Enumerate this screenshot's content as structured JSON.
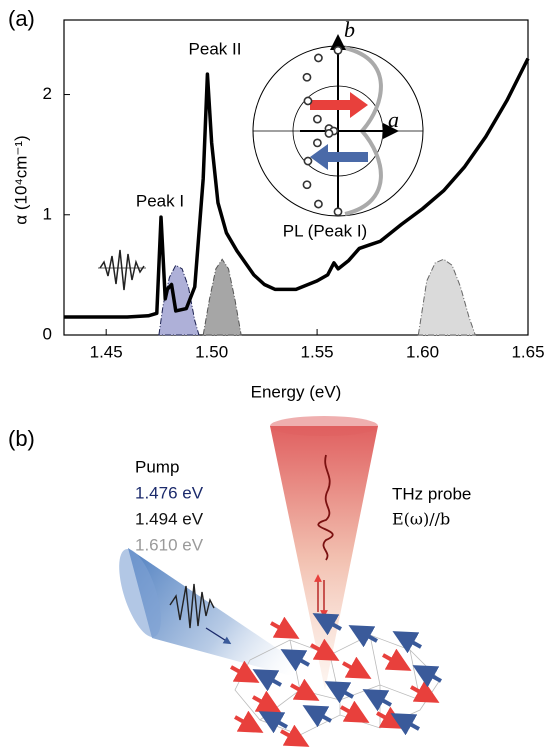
{
  "panel_labels": [
    "(a)",
    "(b)"
  ],
  "chart_data": {
    "type": "line",
    "xlabel": "Energy (eV)",
    "ylabel": "α (10⁴cm⁻¹)",
    "xlim": [
      1.43,
      1.65
    ],
    "ylim": [
      0,
      2.62
    ],
    "xticks": [
      1.45,
      {
        "value": 1.5,
        "label": "1.50"
      },
      1.55,
      {
        "value": 1.6,
        "label": "1.60"
      },
      1.65
    ],
    "yticks": [
      0,
      1,
      2
    ],
    "annotations": [
      "Peak I",
      "Peak II",
      "PL (Peak I)"
    ],
    "series": [
      {
        "type": "area",
        "color": "#aeb0d8",
        "edge": "#1b2050",
        "x": [
          1.475,
          1.477,
          1.48,
          1.483,
          1.486,
          1.489,
          1.492,
          1.494
        ],
        "values": [
          0,
          0.25,
          0.48,
          0.58,
          0.55,
          0.4,
          0.12,
          0
        ]
      },
      {
        "type": "area",
        "color": "#a6a6a6",
        "edge": "#555555",
        "x": [
          1.496,
          1.499,
          1.502,
          1.505,
          1.508,
          1.511,
          1.514
        ],
        "values": [
          0,
          0.3,
          0.55,
          0.63,
          0.55,
          0.3,
          0
        ]
      },
      {
        "type": "area",
        "color": "#dadada",
        "edge": "#666666",
        "x": [
          1.598,
          1.602,
          1.606,
          1.61,
          1.614,
          1.618,
          1.622,
          1.625
        ],
        "values": [
          0,
          0.45,
          0.6,
          0.63,
          0.58,
          0.4,
          0.15,
          0
        ]
      },
      {
        "type": "line",
        "color": "#000000",
        "x": [
          1.43,
          1.45,
          1.46,
          1.47,
          1.474,
          1.476,
          1.478,
          1.479,
          1.481,
          1.483,
          1.488,
          1.492,
          1.496,
          1.498,
          1.5,
          1.503,
          1.507,
          1.512,
          1.52,
          1.525,
          1.53,
          1.54,
          1.55,
          1.555,
          1.558,
          1.56,
          1.565,
          1.57,
          1.575,
          1.58,
          1.59,
          1.6,
          1.61,
          1.62,
          1.63,
          1.64,
          1.65
        ],
        "values": [
          0.15,
          0.15,
          0.15,
          0.16,
          0.18,
          0.98,
          0.3,
          0.38,
          0.42,
          0.2,
          0.22,
          0.4,
          1.3,
          2.17,
          1.6,
          1.1,
          0.85,
          0.7,
          0.5,
          0.42,
          0.38,
          0.38,
          0.45,
          0.5,
          0.6,
          0.55,
          0.62,
          0.72,
          0.75,
          0.78,
          0.92,
          1.05,
          1.2,
          1.4,
          1.65,
          1.95,
          2.3
        ]
      }
    ],
    "inset": {
      "type": "polar",
      "axis_labels": [
        "b",
        "a"
      ],
      "rlim": [
        0,
        1
      ],
      "angles": [
        90,
        105,
        120,
        135,
        150,
        165,
        180,
        195,
        210,
        225,
        240,
        255,
        270
      ],
      "r": [
        0.95,
        0.89,
        0.73,
        0.5,
        0.28,
        0.11,
        0.05,
        0.11,
        0.28,
        0.5,
        0.73,
        0.89,
        0.95
      ]
    }
  },
  "diagram": {
    "pump_label": "Pump",
    "pump_energies": [
      {
        "text": "1.476 eV",
        "color": "#1b2a6b"
      },
      {
        "text": "1.494 eV",
        "color": "#111111"
      },
      {
        "text": "1.610 eV",
        "color": "#9a9a9a"
      }
    ],
    "probe_label": "THz probe",
    "probe_polarization": "E(ω)//b"
  }
}
